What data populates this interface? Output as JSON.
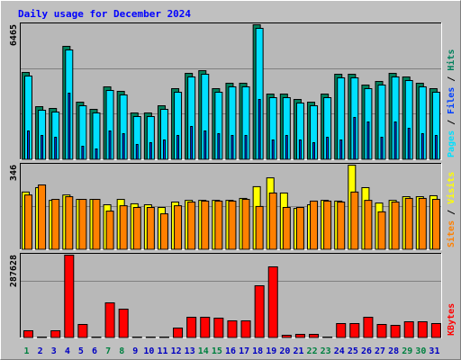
{
  "title": "Daily usage for December 2024",
  "chart_data": [
    {
      "type": "bar",
      "ymax_label": 6465,
      "ylim": [
        0,
        6465
      ],
      "separator": " / ",
      "series": [
        {
          "name": "Pages",
          "color": "#00e0ff",
          "values": [
            4009,
            2371,
            2285,
            5259,
            2586,
            2242,
            3319,
            3104,
            2069,
            2069,
            2414,
            3233,
            3966,
            4095,
            3233,
            3492,
            3492,
            6293,
            2974,
            2974,
            2716,
            2586,
            2974,
            3923,
            3923,
            3405,
            3578,
            3966,
            3793,
            3492,
            3233
          ]
        },
        {
          "name": "Files",
          "color": "#0040ff",
          "values": [
            1379,
            1164,
            1078,
            3189,
            647,
            517,
            1379,
            1250,
            733,
            819,
            948,
            1164,
            1595,
            1379,
            1250,
            1164,
            1164,
            2888,
            948,
            1164,
            948,
            819,
            1078,
            948,
            2026,
            1810,
            1078,
            1810,
            1509,
            1250,
            1164
          ]
        },
        {
          "name": "Hits",
          "color": "#00805c",
          "values": [
            4181,
            2543,
            2457,
            5431,
            2758,
            2414,
            3491,
            3276,
            2241,
            2241,
            2586,
            3405,
            4138,
            4267,
            3405,
            3664,
            3664,
            6465,
            3146,
            3146,
            2888,
            2758,
            3146,
            4095,
            4095,
            3577,
            3750,
            4138,
            3965,
            3664,
            3405
          ]
        }
      ]
    },
    {
      "type": "bar",
      "ymax_label": 346,
      "ylim": [
        0,
        346
      ],
      "separator": " / ",
      "series": [
        {
          "name": "Sites",
          "color": "#ff8000",
          "values": [
            224,
            265,
            206,
            217,
            206,
            206,
            158,
            180,
            173,
            173,
            147,
            180,
            195,
            199,
            199,
            199,
            206,
            177,
            232,
            173,
            173,
            199,
            199,
            195,
            236,
            202,
            155,
            195,
            210,
            210,
            206
          ]
        },
        {
          "name": "Visits",
          "color": "#ffff00",
          "values": [
            236,
            254,
            202,
            224,
            206,
            206,
            184,
            206,
            188,
            184,
            173,
            195,
            202,
            202,
            202,
            202,
            210,
            258,
            294,
            232,
            169,
            184,
            202,
            199,
            346,
            254,
            191,
            202,
            217,
            217,
            221
          ]
        }
      ]
    },
    {
      "type": "bar",
      "ymax_label": 287628,
      "ylim": [
        0,
        287628
      ],
      "separator": " / ",
      "categories": [
        "1",
        "2",
        "3",
        "4",
        "5",
        "6",
        "7",
        "8",
        "9",
        "10",
        "11",
        "12",
        "13",
        "14",
        "15",
        "16",
        "17",
        "18",
        "19",
        "20",
        "21",
        "22",
        "23",
        "24",
        "25",
        "26",
        "27",
        "28",
        "29",
        "30",
        "31"
      ],
      "category_colors": [
        "#008040",
        "#0000c0",
        "#0000c0",
        "#0000c0",
        "#0000c0",
        "#0000c0",
        "#008040",
        "#008040",
        "#0000c0",
        "#0000c0",
        "#0000c0",
        "#0000c0",
        "#0000c0",
        "#008040",
        "#008040",
        "#0000c0",
        "#0000c0",
        "#0000c0",
        "#0000c0",
        "#0000c0",
        "#0000c0",
        "#008040",
        "#008040",
        "#0000c0",
        "#0000c0",
        "#0000c0",
        "#0000c0",
        "#0000c0",
        "#008040",
        "#008040",
        "#0000c0"
      ],
      "series": [
        {
          "name": "KBytes",
          "color": "#ff0000",
          "values": [
            25008,
            3126,
            25008,
            287628,
            46890,
            3126,
            121914,
            100032,
            3126,
            3126,
            3126,
            34386,
            71898,
            71898,
            68772,
            59394,
            59394,
            181308,
            246954,
            9378,
            12504,
            12504,
            3126,
            50016,
            50016,
            71898,
            46890,
            43764,
            56268,
            56268,
            50016
          ]
        }
      ]
    }
  ]
}
